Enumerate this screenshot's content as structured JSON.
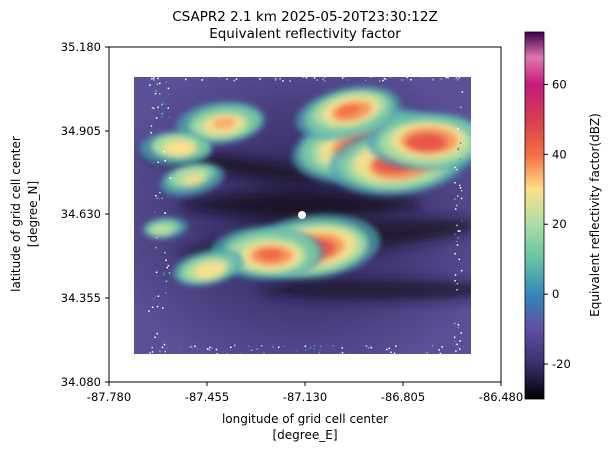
{
  "chart_data": {
    "type": "heatmap",
    "title": "CSAPR2 2.1 km 2025-05-20T23:30:12Z",
    "subtitle": "Equivalent reflectivity factor",
    "xlabel": "longitude of grid cell center",
    "xlabel_units": "[degree_E]",
    "ylabel": "latitude of grid cell center",
    "ylabel_units": "[degree_N]",
    "xlim": [
      -87.78,
      -86.48
    ],
    "ylim": [
      34.08,
      35.18
    ],
    "xticks": [
      "-87.780",
      "-87.455",
      "-87.130",
      "-86.805",
      "-86.480"
    ],
    "yticks": [
      "34.080",
      "34.355",
      "34.630",
      "34.905",
      "35.180"
    ],
    "colorbar": {
      "label": "Equivalent reflectivity factor(dBZ)",
      "range": [
        -30,
        75
      ],
      "ticks": [
        "-20",
        "0",
        "20",
        "40",
        "60"
      ],
      "tick_values": [
        -20,
        0,
        20,
        40,
        60
      ],
      "colormap": "Spectral_r"
    },
    "radar_domain": {
      "lon": [
        -87.65,
        -86.61
      ],
      "lat": [
        34.17,
        35.09
      ],
      "center": [
        -87.13,
        34.63
      ]
    },
    "storm_cells": [
      {
        "lon": -86.93,
        "lat": 34.86,
        "dbz": 52
      },
      {
        "lon": -86.82,
        "lat": 34.8,
        "dbz": 50
      },
      {
        "lon": -86.72,
        "lat": 34.87,
        "dbz": 45
      },
      {
        "lon": -86.98,
        "lat": 34.97,
        "dbz": 40
      },
      {
        "lon": -87.1,
        "lat": 34.52,
        "dbz": 48
      },
      {
        "lon": -87.25,
        "lat": 34.5,
        "dbz": 42
      },
      {
        "lon": -87.45,
        "lat": 34.45,
        "dbz": 30
      },
      {
        "lon": -87.4,
        "lat": 34.93,
        "dbz": 35
      },
      {
        "lon": -87.55,
        "lat": 34.85,
        "dbz": 30
      },
      {
        "lon": -87.5,
        "lat": 34.75,
        "dbz": 28
      },
      {
        "lon": -87.6,
        "lat": 34.58,
        "dbz": 22
      }
    ]
  }
}
